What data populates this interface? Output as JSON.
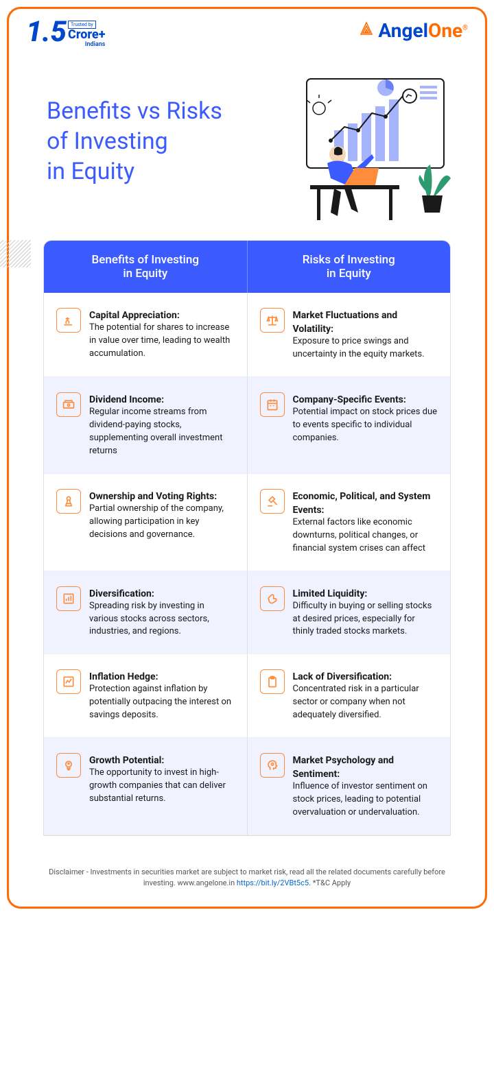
{
  "header": {
    "trust_number": "1.5",
    "trusted_by": "Trusted by",
    "crore": "Crore+",
    "indians": "Indians",
    "brand_prefix": "Angel",
    "brand_suffix": "One",
    "reg_mark": "®"
  },
  "hero": {
    "title": "Benefits vs Risks\nof Investing\nin Equity"
  },
  "table": {
    "header_left": "Benefits of Investing\nin Equity",
    "header_right": "Risks of Investing\nin Equity",
    "rows": [
      {
        "left": {
          "icon": "growth-icon",
          "title": "Capital Appreciation:",
          "desc": "The potential for shares to increase in value over time, leading to wealth accumulation."
        },
        "right": {
          "icon": "scale-icon",
          "title": "Market Fluctuations and Volatility:",
          "desc": "Exposure to price swings and uncertainty in the equity markets."
        }
      },
      {
        "left": {
          "icon": "cash-icon",
          "title": "Dividend Income:",
          "desc": "Regular income streams from dividend-paying stocks, supplementing overall investment returns"
        },
        "right": {
          "icon": "calendar-icon",
          "title": "Company-Specific Events:",
          "desc": "Potential impact on stock prices due to events specific to individual companies."
        }
      },
      {
        "left": {
          "icon": "pawn-icon",
          "title": "Ownership and Voting Rights:",
          "desc": "Partial ownership of the company, allowing participation in key decisions and governance."
        },
        "right": {
          "icon": "gavel-icon",
          "title": "Economic, Political, and System Events:",
          "desc": "External factors like economic downturns, political changes, or financial system crises can affect"
        }
      },
      {
        "left": {
          "icon": "bars-icon",
          "title": "Diversification:",
          "desc": "Spreading risk by investing in various stocks across sectors, industries, and regions."
        },
        "right": {
          "icon": "hand-icon",
          "title": "Limited Liquidity:",
          "desc": "Difficulty in buying or selling stocks at desired prices, especially for thinly traded stocks markets."
        }
      },
      {
        "left": {
          "icon": "chart-icon",
          "title": "Inflation Hedge:",
          "desc": "Protection against inflation by potentially outpacing the interest on savings deposits."
        },
        "right": {
          "icon": "clipboard-icon",
          "title": "Lack of Diversification:",
          "desc": "Concentrated risk in a particular sector or company when not adequately diversified."
        }
      },
      {
        "left": {
          "icon": "bulb-icon",
          "title": "Growth Potential:",
          "desc": "The opportunity to invest in high-growth companies that can deliver substantial returns."
        },
        "right": {
          "icon": "head-icon",
          "title": "Market Psychology and Sentiment:",
          "desc": "Influence of investor sentiment on stock prices, leading to potential overvaluation or undervaluation."
        }
      }
    ]
  },
  "disclaimer": {
    "text_before": "Disclaimer - Investments in securities market are subject to market risk, read all the related documents carefully before investing. www.angelone.in ",
    "link": "https://bit.ly/2VBt5c5",
    "text_after": ". *T&C Apply"
  },
  "colors": {
    "primary_blue": "#3b5bff",
    "brand_blue": "#0047cc",
    "accent_orange": "#ff6b00",
    "icon_orange": "#ff8c3a",
    "row_alt_bg": "#f0f2ff"
  }
}
